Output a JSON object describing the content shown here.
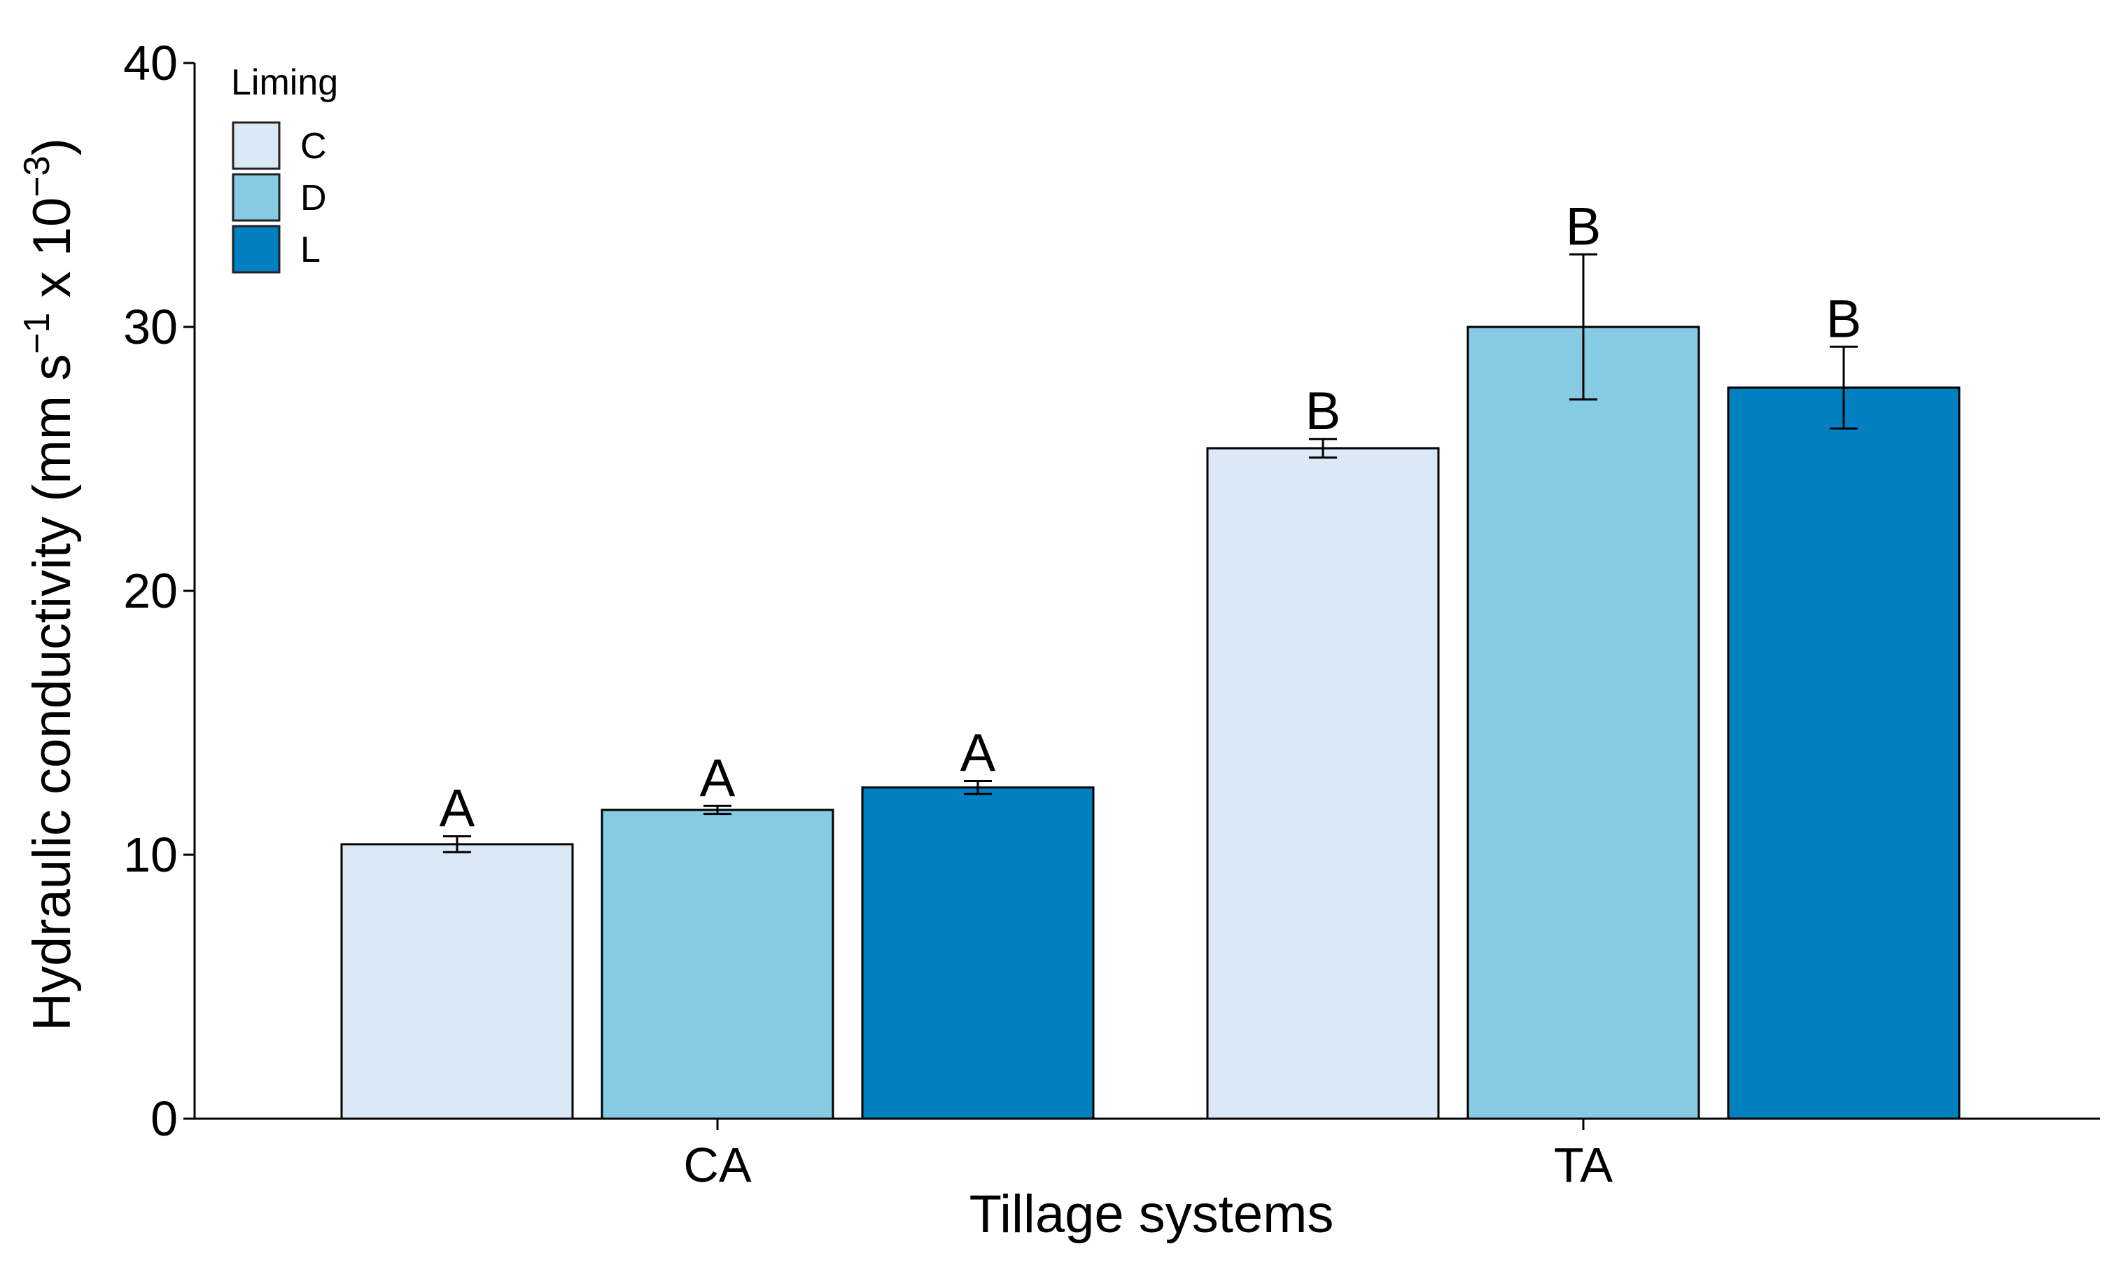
{
  "chart_data": {
    "type": "bar",
    "xlabel": "Tillage systems",
    "ylabel": {
      "main": "Hydraulic conductivity (mm s",
      "exp1": "−1",
      "mid": " x 10",
      "exp2": "−3",
      "end": ")"
    },
    "ylim": [
      0,
      40
    ],
    "yticks": [
      0,
      10,
      20,
      30,
      40
    ],
    "categories": [
      "CA",
      "TA"
    ],
    "legend": {
      "title": "Liming",
      "position": "top-left"
    },
    "series": [
      {
        "name": "C",
        "color": "#dbe9f6",
        "values": [
          10.4,
          25.4
        ],
        "errors": [
          0.3,
          0.35
        ],
        "letters": [
          "A",
          "B"
        ]
      },
      {
        "name": "D",
        "color": "#87cae3",
        "values": [
          11.7,
          30.0
        ],
        "errors": [
          0.15,
          2.75
        ],
        "letters": [
          "A",
          "B"
        ]
      },
      {
        "name": "L",
        "color": "#0080c0",
        "values": [
          12.55,
          27.7
        ],
        "errors": [
          0.25,
          1.55
        ],
        "letters": [
          "A",
          "B"
        ]
      }
    ]
  }
}
